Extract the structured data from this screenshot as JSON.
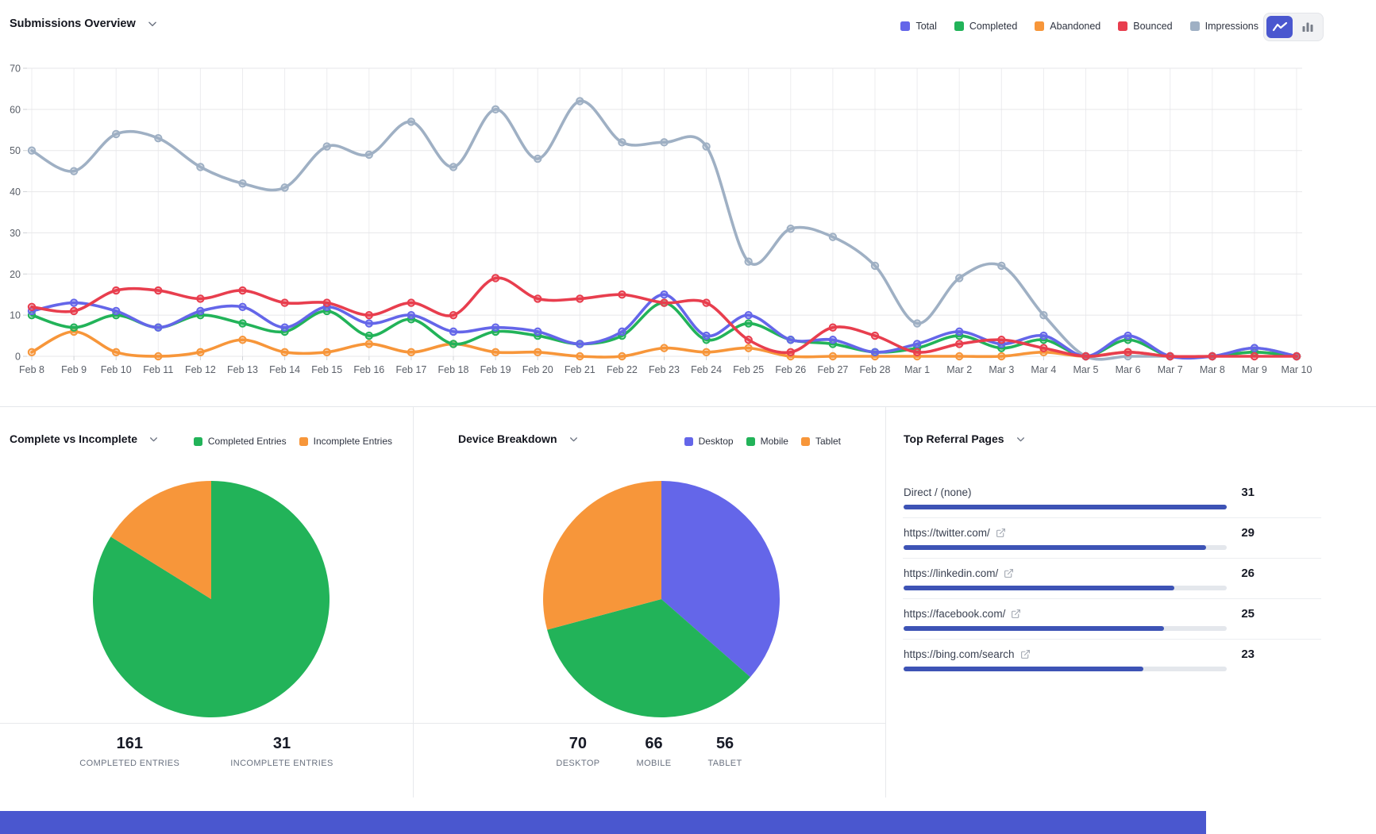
{
  "toggle": {
    "active": "line",
    "options": [
      "line",
      "bar"
    ]
  },
  "colors": {
    "total": "#6466e9",
    "completed": "#22b359",
    "abandoned": "#f7963a",
    "bounced": "#e83e4e",
    "impressions": "#9fb0c4",
    "referral_bar": "#3d53b5",
    "referral_track": "#e4e7ec",
    "toggle_active": "#4a57cf",
    "footer": "#4a57cf"
  },
  "chart_data": [
    {
      "id": "submissions-overview",
      "type": "line",
      "title": "Submissions Overview",
      "x": [
        "Feb 8",
        "Feb 9",
        "Feb 10",
        "Feb 11",
        "Feb 12",
        "Feb 13",
        "Feb 14",
        "Feb 15",
        "Feb 16",
        "Feb 17",
        "Feb 18",
        "Feb 19",
        "Feb 20",
        "Feb 21",
        "Feb 22",
        "Feb 23",
        "Feb 24",
        "Feb 25",
        "Feb 26",
        "Feb 27",
        "Feb 28",
        "Mar 1",
        "Mar 2",
        "Mar 3",
        "Mar 4",
        "Mar 5",
        "Mar 6",
        "Mar 7",
        "Mar 8",
        "Mar 9",
        "Mar 10"
      ],
      "series": [
        {
          "name": "Total",
          "color": "#6466e9",
          "values": [
            11,
            13,
            11,
            7,
            11,
            12,
            7,
            12,
            8,
            10,
            6,
            7,
            6,
            3,
            6,
            15,
            5,
            10,
            4,
            4,
            1,
            3,
            6,
            3,
            5,
            0,
            5,
            0,
            0,
            2,
            0
          ]
        },
        {
          "name": "Completed",
          "color": "#22b359",
          "values": [
            10,
            7,
            10,
            7,
            10,
            8,
            6,
            11,
            5,
            9,
            3,
            6,
            5,
            3,
            5,
            13,
            4,
            8,
            4,
            3,
            1,
            2,
            5,
            2,
            4,
            0,
            4,
            0,
            0,
            1,
            0
          ]
        },
        {
          "name": "Abandoned",
          "color": "#f7963a",
          "values": [
            1,
            6,
            1,
            0,
            1,
            4,
            1,
            1,
            3,
            1,
            3,
            1,
            1,
            0,
            0,
            2,
            1,
            2,
            0,
            0,
            0,
            0,
            0,
            0,
            1,
            0,
            1,
            0,
            0,
            1,
            0
          ]
        },
        {
          "name": "Bounced",
          "color": "#e83e4e",
          "values": [
            12,
            11,
            16,
            16,
            14,
            16,
            13,
            13,
            10,
            13,
            10,
            19,
            14,
            14,
            15,
            13,
            13,
            4,
            1,
            7,
            5,
            1,
            3,
            4,
            2,
            0,
            1,
            0,
            0,
            0,
            0
          ]
        },
        {
          "name": "Impressions",
          "color": "#9fb0c4",
          "values": [
            50,
            45,
            54,
            53,
            46,
            42,
            41,
            51,
            49,
            57,
            46,
            60,
            48,
            62,
            52,
            52,
            51,
            23,
            31,
            29,
            22,
            8,
            19,
            22,
            10,
            0,
            0,
            0,
            0,
            2,
            0
          ]
        }
      ],
      "ylim": [
        0,
        70
      ],
      "yticks": [
        0,
        10,
        20,
        30,
        40,
        50,
        60,
        70
      ],
      "grid": true,
      "legend_position": "top-right"
    },
    {
      "id": "complete-vs-incomplete",
      "type": "pie",
      "title": "Complete vs Incomplete",
      "slices": [
        {
          "label": "Completed Entries",
          "value": 161,
          "color": "#22b359"
        },
        {
          "label": "Incomplete Entries",
          "value": 31,
          "color": "#f7963a"
        }
      ],
      "stats": [
        {
          "value": "161",
          "label": "COMPLETED ENTRIES"
        },
        {
          "value": "31",
          "label": "INCOMPLETE ENTRIES"
        }
      ]
    },
    {
      "id": "device-breakdown",
      "type": "pie",
      "title": "Device Breakdown",
      "slices": [
        {
          "label": "Desktop",
          "value": 70,
          "color": "#6466e9"
        },
        {
          "label": "Mobile",
          "value": 66,
          "color": "#22b359"
        },
        {
          "label": "Tablet",
          "value": 56,
          "color": "#f7963a"
        }
      ],
      "stats": [
        {
          "value": "70",
          "label": "DESKTOP"
        },
        {
          "value": "66",
          "label": "MOBILE"
        },
        {
          "value": "56",
          "label": "TABLET"
        }
      ]
    },
    {
      "id": "top-referral-pages",
      "type": "bar",
      "title": "Top Referral Pages",
      "max": 31,
      "items": [
        {
          "label": "Direct / (none)",
          "value": 31,
          "external": false
        },
        {
          "label": "https://twitter.com/",
          "value": 29,
          "external": true
        },
        {
          "label": "https://linkedin.com/",
          "value": 26,
          "external": true
        },
        {
          "label": "https://facebook.com/",
          "value": 25,
          "external": true
        },
        {
          "label": "https://bing.com/search",
          "value": 23,
          "external": true
        }
      ]
    }
  ]
}
